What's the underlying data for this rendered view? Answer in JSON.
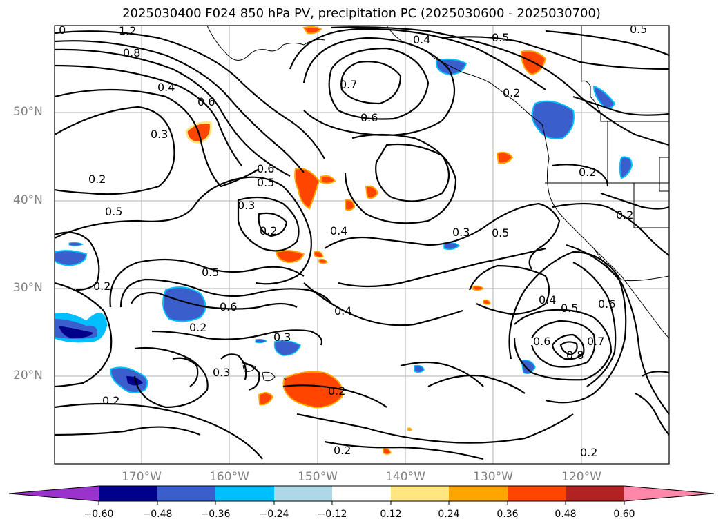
{
  "title": "2025030400 F024 850 hPa PV, precipitation PC (2025030600 - 2025030700)",
  "axes": {
    "lat_labels": [
      "50°N",
      "40°N",
      "30°N",
      "20°N"
    ],
    "lon_labels": [
      "170°W",
      "160°W",
      "150°W",
      "140°W",
      "130°W",
      "120°W"
    ]
  },
  "colorbar": {
    "ticks": [
      "−0.60",
      "−0.48",
      "−0.36",
      "−0.24",
      "−0.12",
      "0.12",
      "0.24",
      "0.36",
      "0.48",
      "0.60"
    ],
    "colors": [
      "#9933cc",
      "#00008b",
      "#3a5fcd",
      "#00bfff",
      "#add8e6",
      "#ffffff",
      "#ffe680",
      "#ffa500",
      "#ff4500",
      "#b22222",
      "#ff88aa"
    ]
  },
  "contour_labels": [
    ".0",
    "1.2",
    "0.8",
    "0.4",
    "0.6",
    "0.3",
    "0.2",
    "0.5",
    "0.4",
    "0.5",
    "0.7",
    "0.6",
    "0.6",
    "0.5",
    "0.3",
    "0.2",
    "0.4",
    "0.3",
    "0.5",
    "0.2",
    "0.5",
    "0.6",
    "0.2",
    "0.4",
    "0.2",
    "0.3",
    "0.3",
    "0.2",
    "0.4",
    "0.5",
    "0.6",
    "0.6",
    "0.8",
    "0.7",
    "0.2",
    "0.2",
    "0.2",
    "0.2",
    "0.5",
    "0.2"
  ],
  "precip_colors": {
    "positive_fill": "#ff4500",
    "positive_edge": "#ffa500",
    "negative_fill": "#3a5fcd",
    "negative_edge": "#00bfff",
    "strong_negative": "#00008b"
  }
}
